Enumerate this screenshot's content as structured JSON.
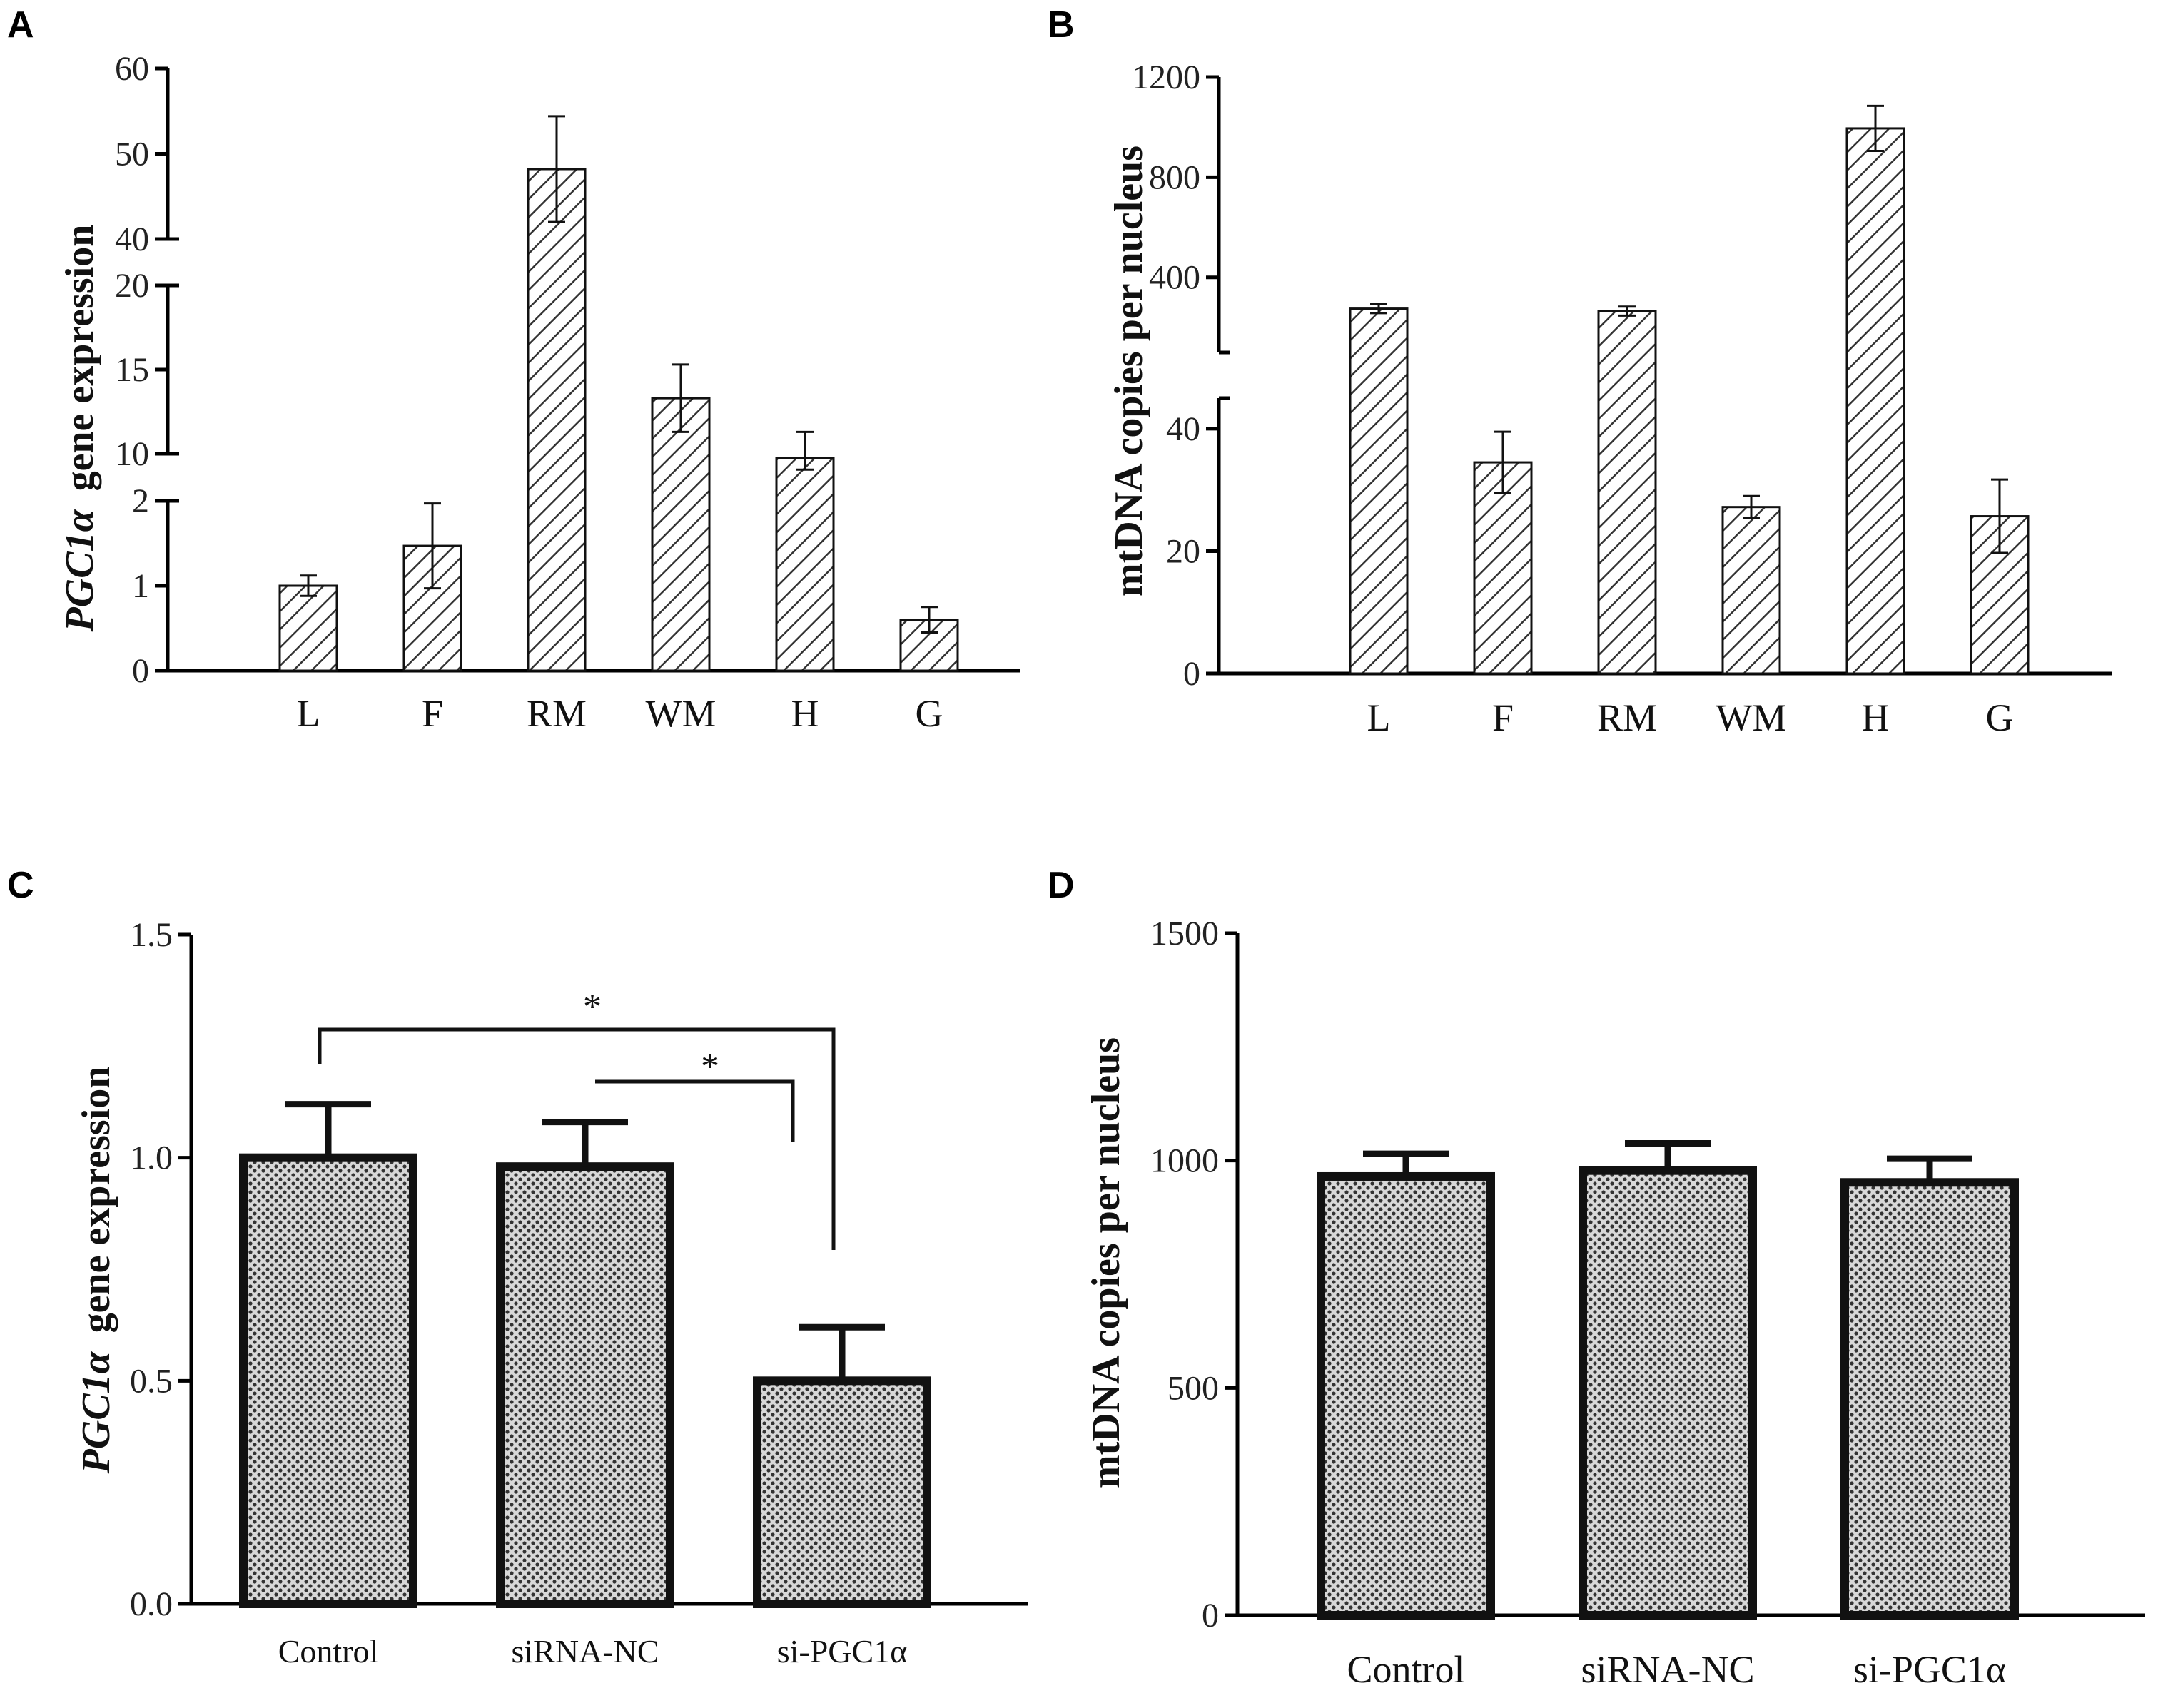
{
  "chart_data": [
    {
      "panel": "A",
      "type": "bar",
      "categories": [
        "L",
        "F",
        "RM",
        "WM",
        "H",
        "G"
      ],
      "values": [
        1.0,
        1.47,
        48.2,
        13.3,
        9.3,
        0.6
      ],
      "errors": [
        0.12,
        0.5,
        6.2,
        2.0,
        2.0,
        0.15
      ],
      "ylabel_italic": "PGC1α",
      "ylabel": "gene expression",
      "y_axis_breaks": [
        [
          0,
          2
        ],
        [
          10,
          20
        ],
        [
          40,
          60
        ]
      ],
      "y_ticks": [
        "0",
        "1",
        "2",
        "10",
        "15",
        "20",
        "40",
        "50",
        "60"
      ],
      "fill": "diagonal-hatch"
    },
    {
      "panel": "B",
      "type": "bar",
      "categories": [
        "L",
        "F",
        "RM",
        "WM",
        "H",
        "G"
      ],
      "values": [
        275,
        34.5,
        265,
        27.2,
        995,
        25.7
      ],
      "errors": [
        18,
        5,
        18,
        1.8,
        90,
        6
      ],
      "ylabel": "mtDNA copies per nucleus",
      "y_axis_breaks": [
        [
          0,
          45
        ],
        [
          100,
          1200
        ]
      ],
      "y_ticks": [
        "0",
        "20",
        "40",
        "400",
        "800",
        "1200"
      ],
      "fill": "diagonal-hatch"
    },
    {
      "panel": "C",
      "type": "bar",
      "categories": [
        "Control",
        "siRNA-NC",
        "si-PGC1α"
      ],
      "values": [
        1.0,
        0.98,
        0.5
      ],
      "errors": [
        0.12,
        0.1,
        0.12
      ],
      "ylabel_italic": "PGC1α",
      "ylabel": "gene expression",
      "ylim": [
        0,
        1.5
      ],
      "y_ticks": [
        "0.0",
        "0.5",
        "1.0",
        "1.5"
      ],
      "significance": [
        "*",
        "*"
      ],
      "fill": "dotted"
    },
    {
      "panel": "D",
      "type": "bar",
      "categories": [
        "Control",
        "siRNA-NC",
        "si-PGC1α"
      ],
      "values": [
        965,
        978,
        952
      ],
      "errors": [
        50,
        60,
        52
      ],
      "ylabel": "mtDNA copies per nucleus",
      "ylim": [
        0,
        1500
      ],
      "y_ticks": [
        "0",
        "500",
        "1000",
        "1500"
      ],
      "fill": "dotted"
    }
  ]
}
